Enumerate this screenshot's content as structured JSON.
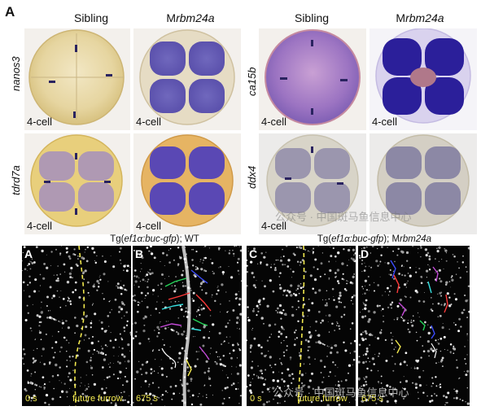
{
  "panel_top_letter": "A",
  "group_left": {
    "col_headers": [
      {
        "plain": "Sibling",
        "italic": ""
      },
      {
        "plain": "M",
        "italic": "rbm24a"
      }
    ],
    "rows": [
      {
        "gene": "nanos3",
        "stages": [
          "4-cell",
          "4-cell"
        ]
      },
      {
        "gene": "tdrd7a",
        "stages": [
          "4-cell",
          "4-cell"
        ]
      }
    ]
  },
  "group_right": {
    "col_headers": [
      {
        "plain": "Sibling",
        "italic": ""
      },
      {
        "plain": "M",
        "italic": "rbm24a"
      }
    ],
    "rows": [
      {
        "gene": "ca15b",
        "stages": [
          "4-cell",
          "4-cell"
        ]
      },
      {
        "gene": "ddx4",
        "stages": [
          "4-cell",
          "4-cell"
        ]
      }
    ]
  },
  "captions": {
    "left": {
      "pre": "Tg(",
      "italic": "ef1α:buc-gfp",
      "post": "); WT"
    },
    "right": {
      "pre": "Tg(",
      "italic": "ef1α:buc-gfp",
      "post": "); M",
      "italic2": "rbm24a"
    }
  },
  "micro_panels": [
    {
      "letter": "A",
      "time": "0 s",
      "furrow_label": "future furrow"
    },
    {
      "letter": "B",
      "time": "675 s",
      "furrow_label": ""
    },
    {
      "letter": "C",
      "time": "0 s",
      "furrow_label": "future furrow"
    },
    {
      "letter": "D",
      "time": "675 s",
      "furrow_label": ""
    }
  ],
  "watermark": "公众号 · 中国斑马鱼信息中心",
  "colors": {
    "yolk": "#ecd79a",
    "stain_purple": "#5c4ab6",
    "stain_dark": "#2b1f9a",
    "furrow_yellow": "#f2e94e"
  }
}
